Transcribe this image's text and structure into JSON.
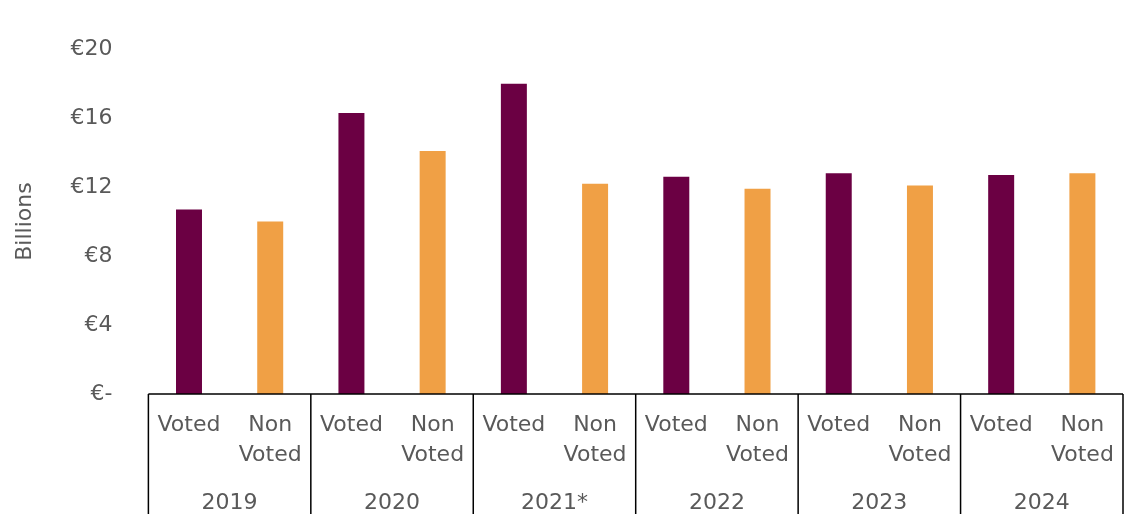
{
  "chart_data": {
    "type": "bar",
    "ylabel": "Billions",
    "categories": [
      "2019",
      "2020",
      "2021*",
      "2022",
      "2023",
      "2024"
    ],
    "series": [
      {
        "name": "Voted",
        "color": "#6b0043",
        "values": [
          10.7,
          16.3,
          18.0,
          12.6,
          12.8,
          12.7
        ]
      },
      {
        "name": "Non Voted",
        "color": "#f0a045",
        "values": [
          10.0,
          14.1,
          12.2,
          11.9,
          12.1,
          12.8
        ]
      }
    ],
    "ylim": [
      0,
      20
    ],
    "yticks": [
      {
        "value": 0,
        "label": "€-"
      },
      {
        "value": 4,
        "label": "€4"
      },
      {
        "value": 8,
        "label": "€8"
      },
      {
        "value": 12,
        "label": "€12"
      },
      {
        "value": 16,
        "label": "€16"
      },
      {
        "value": 20,
        "label": "€20"
      }
    ]
  }
}
